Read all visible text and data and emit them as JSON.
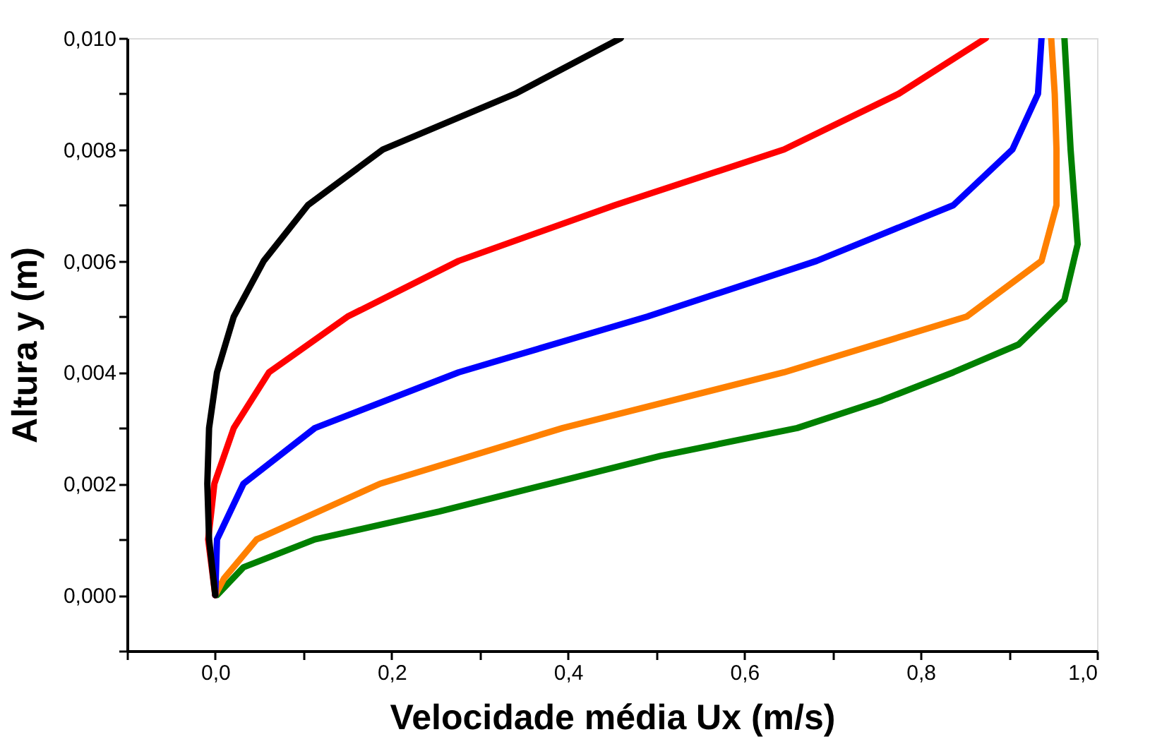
{
  "chart_data": {
    "type": "line",
    "xlabel": "Velocidade média Ux (m/s)",
    "ylabel": "Altura y (m)",
    "xlim": [
      -0.1,
      1.0
    ],
    "ylim": [
      -0.001,
      0.01
    ],
    "xticks": [
      {
        "value": -0.1,
        "label": null
      },
      {
        "value": 0,
        "label": "0,0"
      },
      {
        "value": 0.1,
        "label": null
      },
      {
        "value": 0.2,
        "label": "0,2"
      },
      {
        "value": 0.3,
        "label": null
      },
      {
        "value": 0.4,
        "label": "0,4"
      },
      {
        "value": 0.5,
        "label": null
      },
      {
        "value": 0.6,
        "label": "0,6"
      },
      {
        "value": 0.7,
        "label": null
      },
      {
        "value": 0.8,
        "label": "0,8"
      },
      {
        "value": 0.9,
        "label": null
      },
      {
        "value": 1.0,
        "label": "1,0"
      }
    ],
    "yticks": [
      {
        "value": -0.001,
        "label": null
      },
      {
        "value": 0,
        "label": "0,000"
      },
      {
        "value": 0.001,
        "label": null
      },
      {
        "value": 0.002,
        "label": "0,002"
      },
      {
        "value": 0.003,
        "label": null
      },
      {
        "value": 0.004,
        "label": "0,004"
      },
      {
        "value": 0.005,
        "label": null
      },
      {
        "value": 0.006,
        "label": "0,006"
      },
      {
        "value": 0.007,
        "label": null
      },
      {
        "value": 0.008,
        "label": "0,008"
      },
      {
        "value": 0.009,
        "label": null
      },
      {
        "value": 0.01,
        "label": "0,010"
      }
    ],
    "grid": false,
    "legend": false,
    "line_style": "solid",
    "marker": "none",
    "series": [
      {
        "color": "#008000",
        "x": [
          0.002,
          0.032,
          0.113,
          0.254,
          0.379,
          0.505,
          0.66,
          0.756,
          0.837,
          0.911,
          0.963,
          0.978,
          0.97,
          0.963
        ],
        "values": [
          0,
          0.0005,
          0.001,
          0.0015,
          0.002,
          0.0025,
          0.003,
          0.0035,
          0.004,
          0.0045,
          0.0053,
          0.0063,
          0.008,
          0.01
        ]
      },
      {
        "color": "#ff8000",
        "x": [
          0,
          0.01,
          0.047,
          0.187,
          0.394,
          0.645,
          0.852,
          0.937,
          0.954,
          0.954,
          0.952,
          0.948
        ],
        "values": [
          0,
          0.0003,
          0.001,
          0.002,
          0.003,
          0.004,
          0.005,
          0.006,
          0.007,
          0.008,
          0.009,
          0.01
        ]
      },
      {
        "color": "#0000ff",
        "x": [
          0,
          0.002,
          0.032,
          0.113,
          0.276,
          0.49,
          0.682,
          0.837,
          0.904,
          0.933,
          0.937
        ],
        "values": [
          0,
          0.001,
          0.002,
          0.003,
          0.004,
          0.005,
          0.006,
          0.007,
          0.008,
          0.009,
          0.01
        ]
      },
      {
        "color": "#ff0000",
        "x": [
          0,
          -0.008,
          -0.001,
          0.021,
          0.061,
          0.15,
          0.276,
          0.453,
          0.645,
          0.775,
          0.874
        ],
        "values": [
          0,
          0.001,
          0.002,
          0.003,
          0.004,
          0.005,
          0.006,
          0.007,
          0.008,
          0.009,
          0.01
        ]
      },
      {
        "color": "#000000",
        "x": [
          0,
          -0.007,
          -0.009,
          -0.007,
          0.002,
          0.021,
          0.055,
          0.105,
          0.19,
          0.34,
          0.46
        ],
        "values": [
          0,
          0.001,
          0.002,
          0.003,
          0.004,
          0.005,
          0.006,
          0.007,
          0.008,
          0.009,
          0.01
        ]
      }
    ]
  }
}
